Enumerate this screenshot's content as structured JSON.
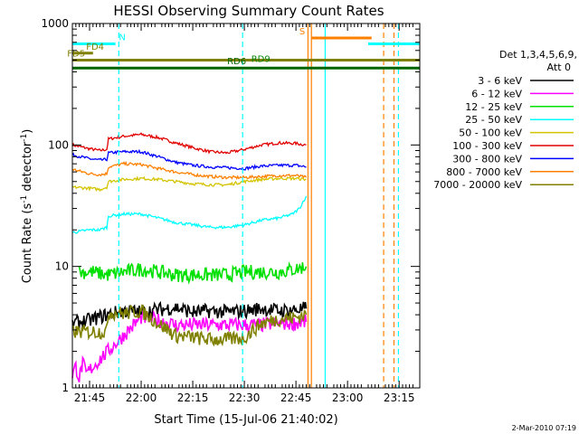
{
  "chart_data": {
    "type": "line",
    "title": "HESSI Observing Summary Count Rates",
    "xlabel": "Start Time (15-Jul-06 21:40:02)",
    "ylabel_main": "Count Rate (s",
    "ylabel_sup1": "-1",
    "ylabel_mid": " detector",
    "ylabel_sup2": "-1",
    "ylabel_end": ")",
    "x_range_min": [
      0,
      101
    ],
    "y_range": [
      1,
      1000
    ],
    "y_scale": "log",
    "x_ticks": [
      {
        "min": 5,
        "label": "21:45"
      },
      {
        "min": 20,
        "label": "22:00"
      },
      {
        "min": 35,
        "label": "22:15"
      },
      {
        "min": 50,
        "label": "22:30"
      },
      {
        "min": 65,
        "label": "22:45"
      },
      {
        "min": 80,
        "label": "23:00"
      },
      {
        "min": 95,
        "label": "23:15"
      }
    ],
    "y_ticks": [
      {
        "value": 1,
        "label": "1"
      },
      {
        "value": 10,
        "label": "10"
      },
      {
        "value": 100,
        "label": "100"
      },
      {
        "value": 1000,
        "label": "1000"
      }
    ],
    "legend": {
      "header1": "Det 1,3,4,5,6,9,",
      "header2": "Att 0",
      "entries": [
        {
          "label": "3 - 6 keV",
          "color": "#000000"
        },
        {
          "label": "6 - 12 keV",
          "color": "#ff00ff"
        },
        {
          "label": "12 - 25 keV",
          "color": "#00e000"
        },
        {
          "label": "25 - 50 keV",
          "color": "#00ffff"
        },
        {
          "label": "50 - 100 keV",
          "color": "#d4c400"
        },
        {
          "label": "100 - 300 keV",
          "color": "#e00000"
        },
        {
          "label": "300 - 800 keV",
          "color": "#0000ff"
        },
        {
          "label": "800 - 7000 keV",
          "color": "#ff8000"
        },
        {
          "label": "7000 - 20000 keV",
          "color": "#808000"
        }
      ]
    },
    "flag_bars": [
      {
        "label": "N",
        "color": "#00ffff",
        "y": 680,
        "segments": [
          [
            0,
            12.5
          ],
          [
            86,
            101
          ]
        ],
        "label_at": 13.5
      },
      {
        "label": "S",
        "color": "#ff8000",
        "y": 760,
        "segments": [
          [
            69.5,
            87
          ]
        ],
        "label_at": 66
      },
      {
        "label": "FD4",
        "color": "#808000",
        "y": 570,
        "segments": [
          [
            0,
            6
          ]
        ],
        "label_at": 4
      },
      {
        "label": "FD5",
        "color": "#808000",
        "y": 500,
        "segments": [
          [
            0,
            101
          ]
        ],
        "label_at": -1.5
      },
      {
        "label": "RD6",
        "color": "#006400",
        "y": 430,
        "segments": [
          [
            0,
            101
          ]
        ],
        "label_at": 45
      },
      {
        "label": "RD9",
        "color": "#008000",
        "y": 450,
        "segments": [],
        "label_at": 52
      }
    ],
    "vertical_markers": [
      {
        "min": 13.5,
        "color": "#00ffff",
        "style": "dashed"
      },
      {
        "min": 49.5,
        "color": "#00ffff",
        "style": "dashed"
      },
      {
        "min": 68.5,
        "color": "#ff8000",
        "style": "solid"
      },
      {
        "min": 69.5,
        "color": "#ff8000",
        "style": "solid"
      },
      {
        "min": 73.5,
        "color": "#00ffff",
        "style": "solid"
      },
      {
        "min": 90.5,
        "color": "#ff8000",
        "style": "dashed"
      },
      {
        "min": 93.5,
        "color": "#ff8000",
        "style": "dashed"
      },
      {
        "min": 94.8,
        "color": "#00ffff",
        "style": "dashed"
      }
    ],
    "series": [
      {
        "name": "100 - 300 keV",
        "color": "#e00000",
        "x": [
          0,
          5,
          8,
          10,
          10.5,
          15,
          20,
          25,
          30,
          35,
          40,
          45,
          50,
          55,
          60,
          65,
          68
        ],
        "y": [
          100,
          93,
          90,
          92,
          112,
          118,
          122,
          115,
          104,
          95,
          88,
          86,
          92,
          100,
          104,
          103,
          100
        ]
      },
      {
        "name": "300 - 800 keV",
        "color": "#0000ff",
        "x": [
          0,
          5,
          8,
          10,
          10.5,
          15,
          20,
          25,
          30,
          35,
          40,
          45,
          50,
          55,
          60,
          65,
          68
        ],
        "y": [
          83,
          77,
          75,
          76,
          86,
          88,
          88,
          80,
          72,
          68,
          66,
          65,
          64,
          67,
          68,
          68,
          66
        ]
      },
      {
        "name": "800 - 7000 keV",
        "color": "#ff8000",
        "x": [
          0,
          5,
          8,
          10,
          10.5,
          15,
          20,
          25,
          30,
          35,
          40,
          45,
          50,
          55,
          60,
          65,
          68
        ],
        "y": [
          63,
          58,
          57,
          58,
          66,
          70,
          69,
          64,
          60,
          57,
          55,
          54,
          54,
          55,
          56,
          56,
          54
        ]
      },
      {
        "name": "50 - 100 keV",
        "color": "#d4c400",
        "x": [
          0,
          5,
          8,
          10,
          10.5,
          15,
          20,
          25,
          30,
          35,
          40,
          45,
          50,
          55,
          60,
          65,
          68
        ],
        "y": [
          45,
          44,
          43,
          45,
          50,
          52,
          53,
          52,
          50,
          48,
          47,
          47,
          50,
          52,
          53,
          53,
          52
        ]
      },
      {
        "name": "25 - 50 keV",
        "color": "#00ffff",
        "x": [
          0,
          5,
          8,
          10,
          10.5,
          15,
          20,
          25,
          30,
          35,
          40,
          45,
          50,
          55,
          60,
          64,
          66,
          68
        ],
        "y": [
          19,
          20,
          20,
          21,
          26,
          27,
          27,
          25,
          23,
          22,
          21,
          21,
          22,
          24,
          25,
          27,
          30,
          38
        ]
      },
      {
        "name": "12 - 25 keV",
        "color": "#00e000",
        "x": [
          2,
          6,
          10,
          15,
          20,
          25,
          30,
          35,
          40,
          45,
          50,
          55,
          60,
          65,
          68
        ],
        "y": [
          9,
          9,
          8.5,
          9,
          9.5,
          9,
          8.5,
          8.5,
          8.5,
          8.5,
          9,
          9,
          9,
          9.5,
          10
        ]
      },
      {
        "name": "6 - 12 keV",
        "color": "#ff00ff",
        "x": [
          0,
          1,
          2,
          3,
          4,
          5,
          20,
          25,
          30,
          35,
          40,
          45,
          50,
          55,
          60,
          65,
          68
        ],
        "y": [
          1.3,
          1.5,
          1.2,
          1.6,
          1.3,
          1.4,
          3.8,
          3.6,
          3.3,
          3.3,
          3.3,
          3.3,
          3.3,
          3.3,
          3.4,
          3.4,
          3.5
        ]
      },
      {
        "name": "3 - 6 keV",
        "color": "#000000",
        "x": [
          0,
          5,
          10,
          15,
          20,
          25,
          30,
          35,
          40,
          45,
          50,
          55,
          60,
          65,
          68
        ],
        "y": [
          3.4,
          3.6,
          4,
          4.3,
          4.2,
          4.4,
          4.6,
          4.2,
          4.3,
          4.2,
          4.3,
          4.5,
          4.3,
          4.4,
          4.5
        ]
      },
      {
        "name": "7000 - 20000 keV",
        "color": "#808000",
        "x": [
          0,
          5,
          10,
          10.5,
          15,
          20,
          25,
          30,
          35,
          40,
          45,
          50,
          55,
          60,
          65,
          68
        ],
        "y": [
          2.9,
          2.9,
          2.9,
          4.2,
          4.1,
          4.3,
          3.4,
          2.7,
          2.6,
          2.5,
          2.5,
          2.6,
          3.4,
          3.7,
          3.8,
          4
        ]
      }
    ],
    "footer_date": "2-Mar-2010 07:19"
  }
}
